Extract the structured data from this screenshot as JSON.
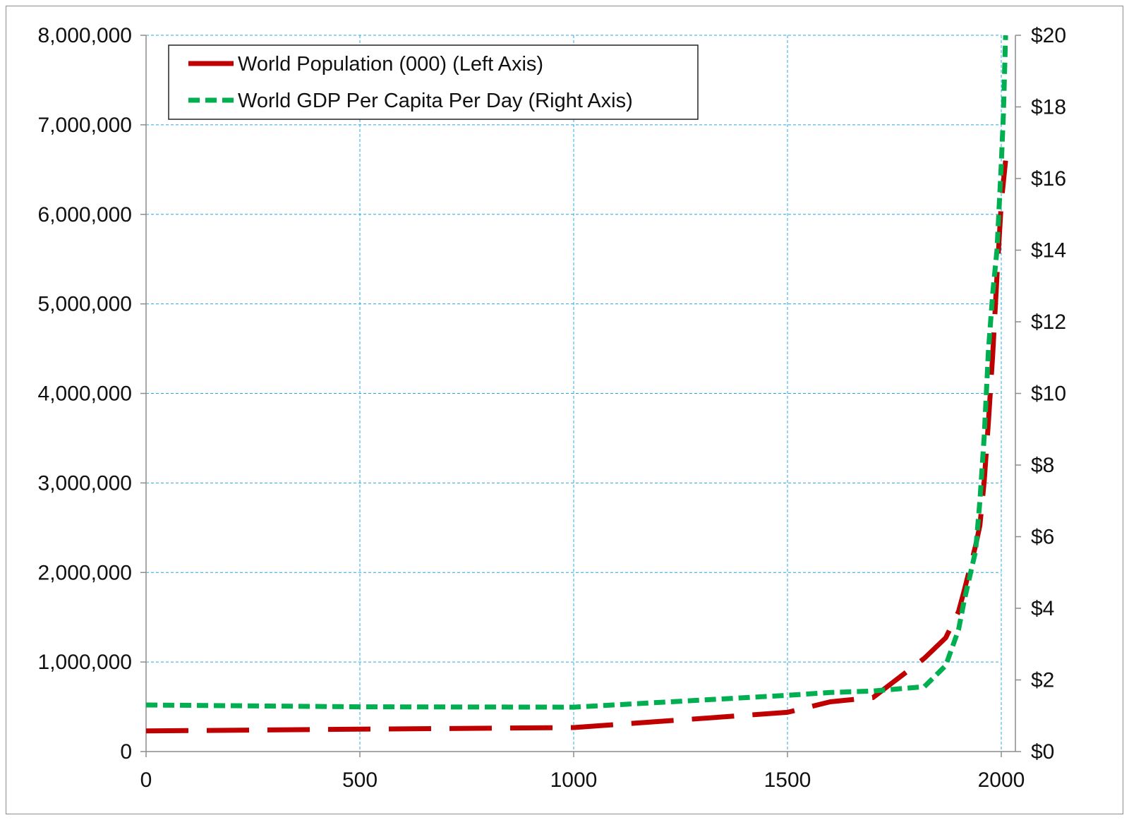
{
  "chart_data": {
    "type": "line",
    "title": "",
    "xlabel": "",
    "ylabel": "",
    "y2label": "",
    "grid": true,
    "legend_position": "top-left",
    "xlim": [
      0,
      2000
    ],
    "ylim": [
      0,
      8000000
    ],
    "y2lim": [
      0,
      20
    ],
    "x_ticks": [
      "0",
      "500",
      "1000",
      "1500",
      "2000"
    ],
    "x_tick_values": [
      0,
      500,
      1000,
      1500,
      2000
    ],
    "y_ticks": [
      "0",
      "1,000,000",
      "2,000,000",
      "3,000,000",
      "4,000,000",
      "5,000,000",
      "6,000,000",
      "7,000,000",
      "8,000,000"
    ],
    "y_tick_values": [
      0,
      1000000,
      2000000,
      3000000,
      4000000,
      5000000,
      6000000,
      7000000,
      8000000
    ],
    "y2_ticks": [
      "$0",
      "$2",
      "$4",
      "$6",
      "$8",
      "$10",
      "$12",
      "$14",
      "$16",
      "$18",
      "$20"
    ],
    "y2_tick_values": [
      0,
      2,
      4,
      6,
      8,
      10,
      12,
      14,
      16,
      18,
      20
    ],
    "series": [
      {
        "name": "World Population (000) (Left Axis)",
        "axis": "left",
        "color": "#c00000",
        "style": "long-dash",
        "x": [
          0,
          500,
          1000,
          1500,
          1600,
          1700,
          1820,
          1870,
          1900,
          1913,
          1940,
          1950,
          1960,
          1970,
          1980,
          1990,
          2000,
          2010
        ],
        "y": [
          230000,
          250000,
          268000,
          438000,
          556000,
          603000,
          1041000,
          1270000,
          1563000,
          1793000,
          2300000,
          2525000,
          3018000,
          3682000,
          4440000,
          5310000,
          6127000,
          6600000
        ]
      },
      {
        "name": "World GDP Per Capita Per Day (Right Axis)",
        "axis": "right",
        "color": "#00b050",
        "style": "dash",
        "x": [
          0,
          500,
          1000,
          1500,
          1600,
          1700,
          1820,
          1870,
          1900,
          1913,
          1940,
          1950,
          1960,
          1970,
          1980,
          1990,
          2000,
          2005,
          2010
        ],
        "y": [
          1.3,
          1.25,
          1.24,
          1.57,
          1.65,
          1.69,
          1.81,
          2.4,
          3.4,
          4.2,
          5.6,
          7.0,
          8.8,
          11.2,
          12.8,
          14.0,
          16.4,
          17.8,
          20.0
        ]
      }
    ]
  }
}
